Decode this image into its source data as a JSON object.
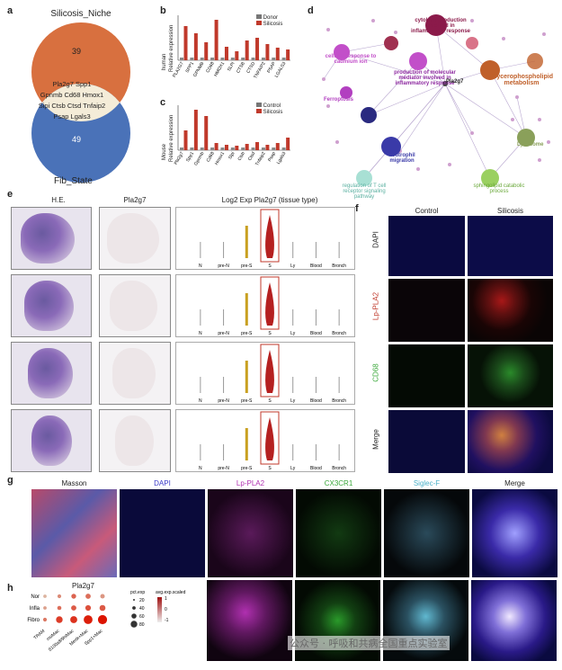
{
  "panels": {
    "a": {
      "label": "a",
      "top_set": "Silicosis_Niche",
      "top_count": "39",
      "bottom_set": "Fib_State",
      "bottom_count": "49",
      "shared_rows": [
        "Pla2g7  Spp1",
        "Gpnmb Cd68 Hmox1",
        "Sipi  Ctsb  Ctsd  Tnfaip2",
        "Psap  Lgals3"
      ]
    },
    "b": {
      "label": "b",
      "ylabel": "Relative expression",
      "side_label": "human",
      "legend": [
        "Donor",
        "Silicosis"
      ],
      "genes": [
        "PLA2G7",
        "SPP1",
        "GPNMB",
        "CD68",
        "HMOX1",
        "SLPI",
        "CTSB",
        "CTSD",
        "TNFAIP2",
        "PSAP",
        "LGALS3"
      ]
    },
    "c": {
      "label": "c",
      "ylabel": "Relative expression",
      "side_label": "Mouse",
      "legend": [
        "Control",
        "Silicosis"
      ],
      "genes": [
        "Pla2g7",
        "Spp1",
        "Gpnmb",
        "Cd68",
        "Hmox1",
        "Slpi",
        "Ctsb",
        "Ctsd",
        "Tnfaip2",
        "Psap",
        "Lgals3"
      ]
    },
    "d": {
      "label": "d",
      "nodes": [
        {
          "text": "cellular response to cadmium ion",
          "color": "#c24fc9"
        },
        {
          "text": "cytokine production involved in inflammatory response",
          "color": "#8b1a4a"
        },
        {
          "text": "production of molecular mediator involved in inflammatory response",
          "color": "#8e2aa0"
        },
        {
          "text": "Pla2g7",
          "color": "#333333"
        },
        {
          "text": "Glycerophospholipid metabolism",
          "color": "#c0602a"
        },
        {
          "text": "Ferroptosis",
          "color": "#b23fc0"
        },
        {
          "text": "Lysosome",
          "color": "#8aa05a"
        },
        {
          "text": "neutrophil migration",
          "color": "#3a3aa8"
        },
        {
          "text": "regulation of T cell receptor signaling pathway",
          "color": "#88d4c8"
        },
        {
          "text": "sphingolipid catabolic process",
          "color": "#86c84a"
        }
      ]
    },
    "e": {
      "label": "e",
      "col1": "H.E.",
      "col2": "Pla2g7",
      "col3": "Log2 Exp Pla2g7 (tissue type)",
      "xcats": [
        "N",
        "pre-N",
        "pre-S",
        "S",
        "Ly",
        "Blood",
        "Bronch"
      ]
    },
    "f": {
      "label": "f",
      "cols": [
        "Control",
        "Silicosis"
      ],
      "rows": [
        {
          "name": "DAPI",
          "color": "#333333"
        },
        {
          "name": "Lp-PLA2",
          "color": "#c0392b"
        },
        {
          "name": "CD68",
          "color": "#3aa83a"
        },
        {
          "name": "Merge",
          "color": "#333333"
        }
      ]
    },
    "g": {
      "label": "g",
      "cols": [
        {
          "name": "Masson",
          "color": "#222222"
        },
        {
          "name": "DAPI",
          "color": "#3a3ac8"
        },
        {
          "name": "Lp-PLA2",
          "color": "#b030b0"
        },
        {
          "name": "CX3CR1",
          "color": "#3aa83a"
        },
        {
          "name": "Siglec-F",
          "color": "#4ab0c8"
        },
        {
          "name": "Merge",
          "color": "#222222"
        }
      ]
    },
    "h": {
      "label": "h",
      "title": "Pla2g7",
      "rows": [
        "Nor",
        "Infla",
        "Fibro"
      ],
      "cols": [
        "TRAM",
        "moMac",
        "S100a8/9hiMac",
        "Mertk+Mac",
        "Spp1+Mac"
      ],
      "legend_pct": "pct.exp",
      "legend_avg": "avg.exp.scaled",
      "pct_values": [
        "20",
        "40",
        "60",
        "80"
      ],
      "avg_values": [
        "1",
        "0",
        "-1"
      ],
      "dots": [
        [
          0.1,
          0.15,
          0.3,
          0.35,
          0.25
        ],
        [
          0.1,
          0.2,
          0.35,
          0.4,
          0.45
        ],
        [
          0.15,
          0.55,
          0.6,
          0.85,
          0.9
        ]
      ],
      "avg": [
        [
          -0.6,
          -0.2,
          0.2,
          0.1,
          -0.3
        ],
        [
          -0.4,
          0.1,
          0.3,
          0.4,
          0.3
        ],
        [
          0.0,
          0.6,
          0.7,
          0.9,
          1.0
        ]
      ]
    }
  },
  "watermark": "公众号 · 呼吸和共病全国重点实验室"
}
